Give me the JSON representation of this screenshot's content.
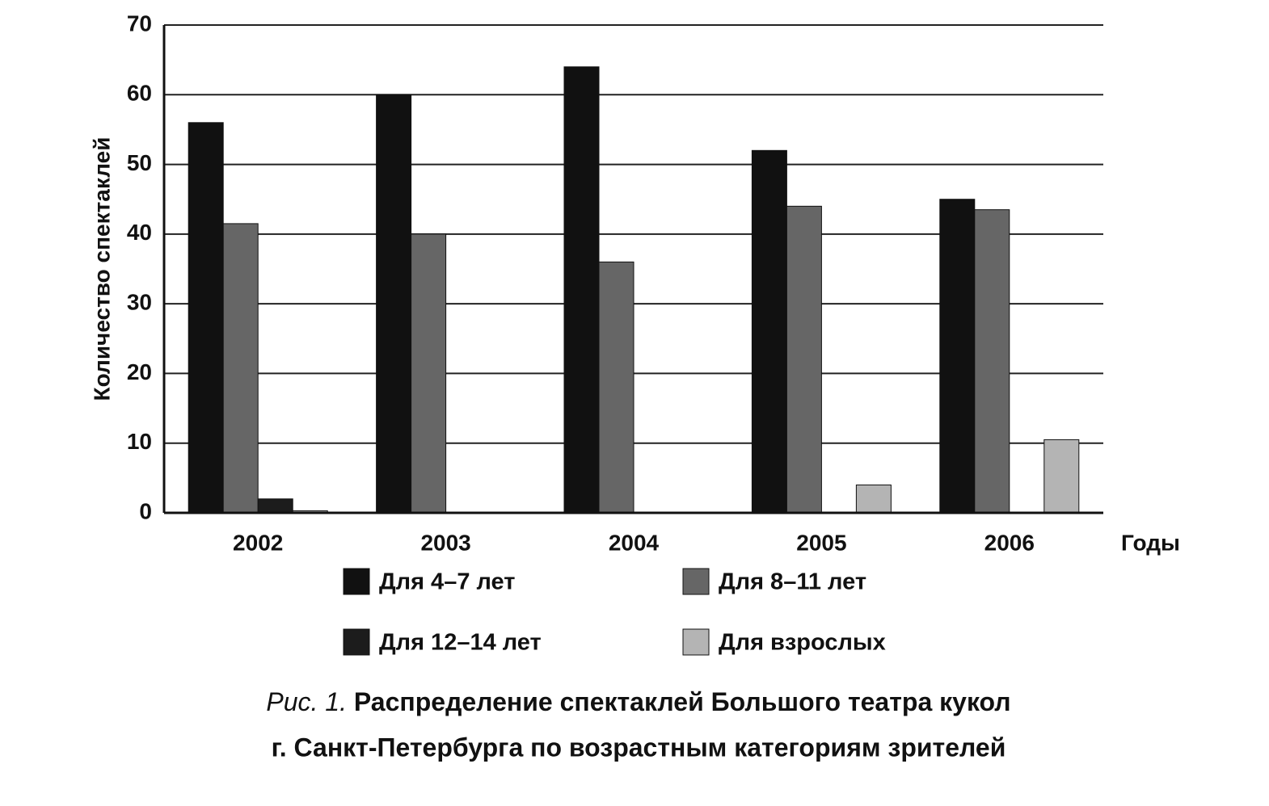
{
  "chart_data": {
    "type": "bar",
    "figure_label": "Рис. 1.",
    "title": [
      "Распределение спектаклей Большого театра кукол",
      "г. Санкт-Петербурга по возрастным категориям зрителей"
    ],
    "y_label": "Количество спектаклей",
    "x_label": "Годы",
    "categories": [
      "2002",
      "2003",
      "2004",
      "2005",
      "2006"
    ],
    "series": [
      {
        "name": "Для 4–7 лет",
        "color": "#111111",
        "values": [
          56,
          60,
          64,
          52,
          45
        ]
      },
      {
        "name": "Для 8–11 лет",
        "color": "#666666",
        "values": [
          41.5,
          40,
          36,
          44,
          43.5
        ]
      },
      {
        "name": "Для 12–14 лет",
        "color": "#1c1c1c",
        "values": [
          2,
          0,
          0,
          0,
          0
        ]
      },
      {
        "name": "Для взрослых",
        "color": "#b4b4b4",
        "values": [
          0.3,
          0,
          0,
          4,
          10.5
        ]
      }
    ],
    "ylim": [
      0,
      70
    ],
    "yticks": [
      0,
      10,
      20,
      30,
      40,
      50,
      60,
      70
    ],
    "grid": true
  }
}
